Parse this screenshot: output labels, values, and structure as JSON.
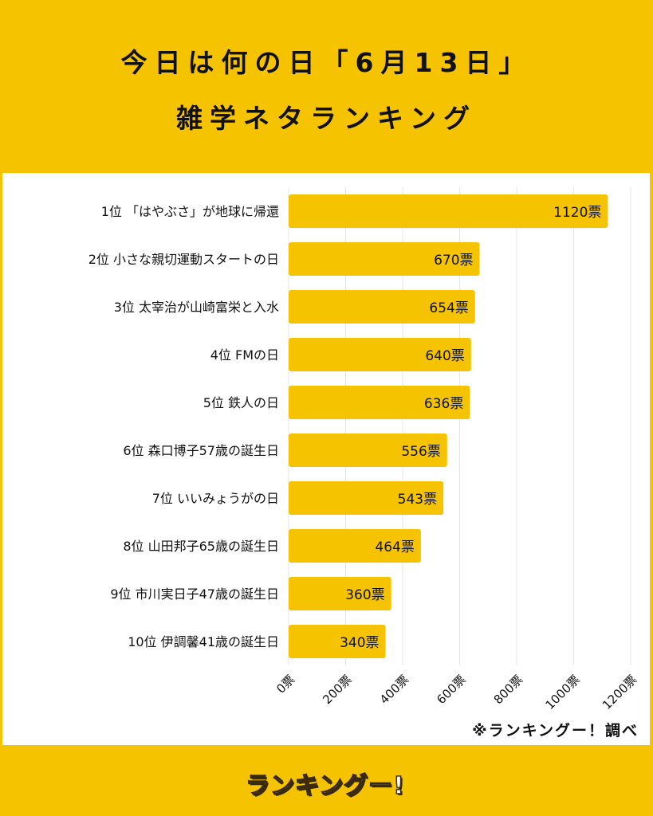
{
  "header": {
    "title_line1": "今日は何の日「6月13日」",
    "title_line2": "雑学ネタランキング"
  },
  "chart_data": {
    "type": "bar",
    "orientation": "horizontal",
    "categories": [
      "1位 「はやぶさ」が地球に帰還",
      "2位 小さな親切運動スタートの日",
      "3位 太宰治が山崎富栄と入水",
      "4位 FMの日",
      "5位 鉄人の日",
      "6位 森口博子57歳の誕生日",
      "7位 いいみょうがの日",
      "8位 山田邦子65歳の誕生日",
      "9位 市川実日子47歳の誕生日",
      "10位 伊調馨41歳の誕生日"
    ],
    "values": [
      1120,
      670,
      654,
      640,
      636,
      556,
      543,
      464,
      360,
      340
    ],
    "value_labels": [
      "1120票",
      "670票",
      "654票",
      "640票",
      "636票",
      "556票",
      "543票",
      "464票",
      "360票",
      "340票"
    ],
    "xlim": [
      0,
      1200
    ],
    "ticks": [
      0,
      200,
      400,
      600,
      800,
      1000,
      1200
    ],
    "tick_labels": [
      "0票",
      "200票",
      "400票",
      "600票",
      "800票",
      "1000票",
      "1200票"
    ],
    "grid": true,
    "bar_color": "#F5C300"
  },
  "source_note": "※ランキングー！調べ",
  "footer": {
    "logo_text": "ランキングー!"
  },
  "colors": {
    "background": "#F5C300",
    "panel": "#FFFFFF",
    "text": "#111111"
  }
}
